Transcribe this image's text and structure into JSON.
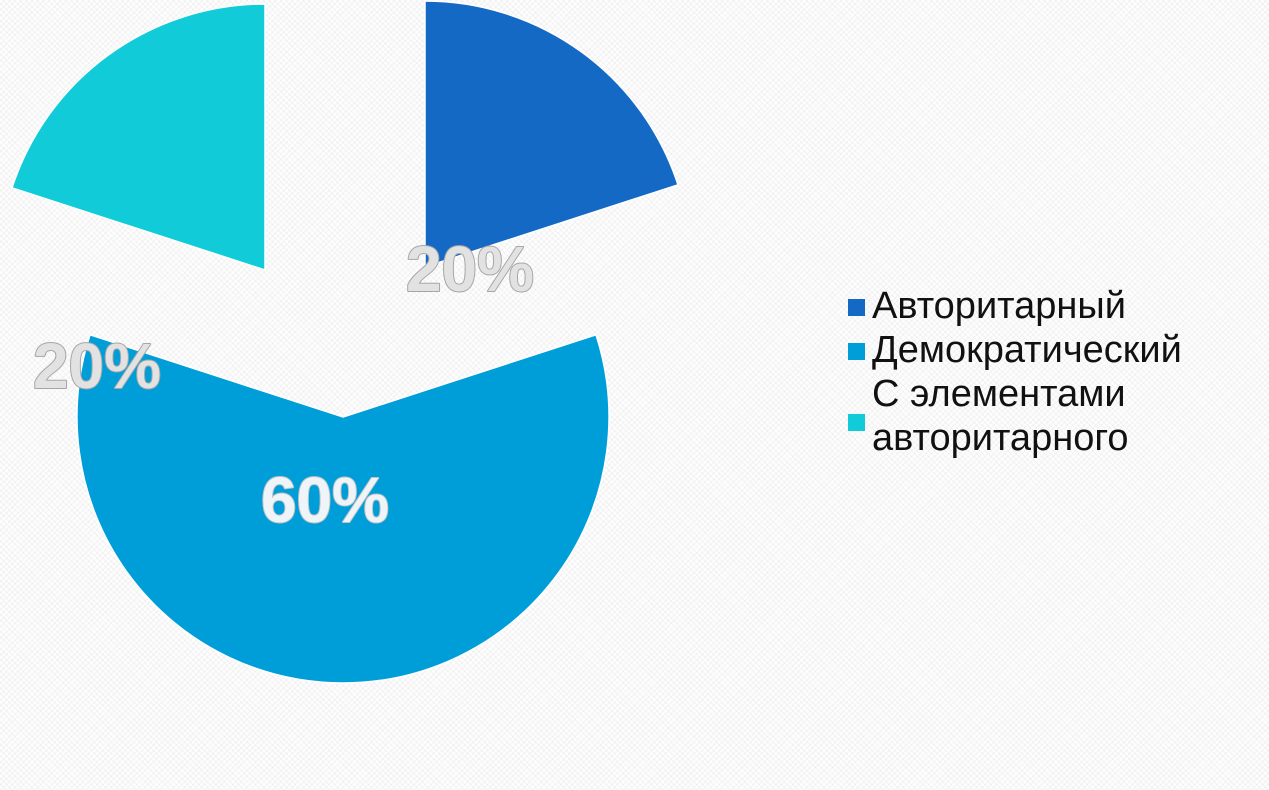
{
  "chart_data": {
    "type": "pie",
    "style": "exploded",
    "categories": [
      "Авторитарный",
      "Демократический",
      "С элементами авторитарного"
    ],
    "values": [
      20,
      60,
      20
    ],
    "data_labels": [
      "20%",
      "60%",
      "20%"
    ],
    "colors": [
      "#1469c4",
      "#009ed8",
      "#11ccd8"
    ],
    "legend_position": "right"
  }
}
